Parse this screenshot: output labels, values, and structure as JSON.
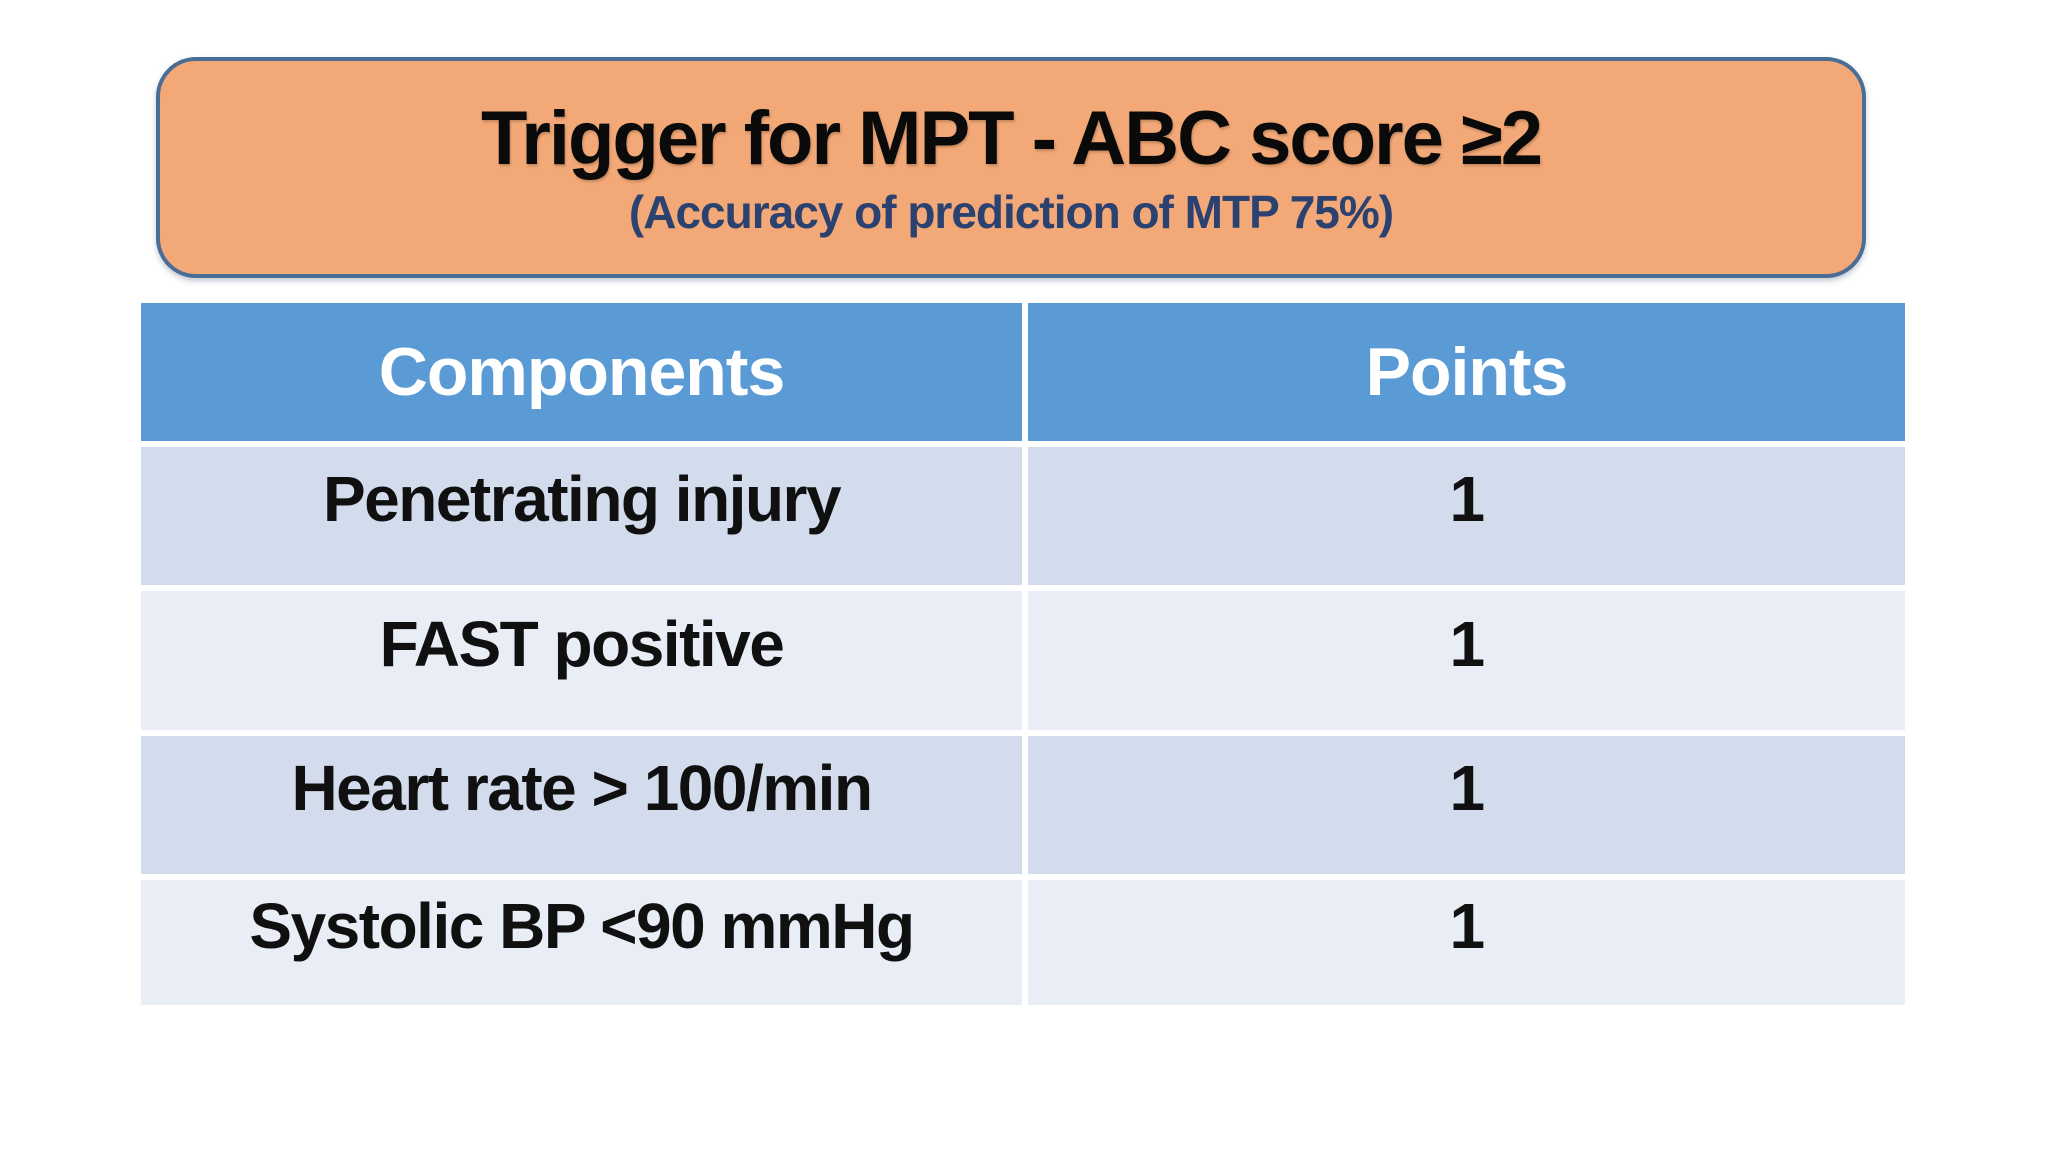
{
  "slide": {
    "title": "Trigger for MPT - ABC score ≥2",
    "subtitle": "(Accuracy of prediction of MTP 75%)"
  },
  "table": {
    "headers": [
      "Components",
      "Points"
    ],
    "rows": [
      {
        "component": "Penetrating injury",
        "points": "1"
      },
      {
        "component": "FAST positive",
        "points": "1"
      },
      {
        "component": "Heart rate > 100/min",
        "points": "1"
      },
      {
        "component": "Systolic BP <90 mmHg",
        "points": "1"
      }
    ]
  },
  "colors": {
    "background": "#FFFFFF",
    "title_box_fill": "#F2A877",
    "title_box_border": "#4A6D96",
    "title_text": "#0A0A0A",
    "subtitle_text": "#2B4170",
    "header_fill": "#5B9BD5",
    "header_text": "#FFFFFF",
    "row_odd_fill": "#D3DCEC",
    "row_even_fill": "#E9EDF5",
    "row_text": "#101010"
  }
}
